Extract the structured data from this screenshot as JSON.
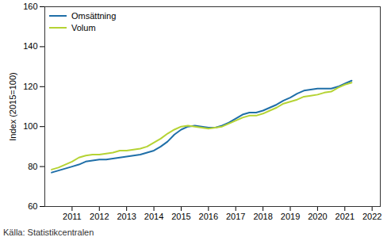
{
  "chart_data": {
    "type": "line",
    "y_label": "Index (2015=100)",
    "caption": "Källa: Statistikcentralen",
    "x": [
      2010.25,
      2010.5,
      2010.75,
      2011,
      2011.25,
      2011.5,
      2011.75,
      2012,
      2012.25,
      2012.5,
      2012.75,
      2013,
      2013.25,
      2013.5,
      2013.75,
      2014,
      2014.25,
      2014.5,
      2014.75,
      2015,
      2015.25,
      2015.5,
      2015.75,
      2016,
      2016.25,
      2016.5,
      2016.75,
      2017,
      2017.25,
      2017.5,
      2017.75,
      2018,
      2018.25,
      2018.5,
      2018.75,
      2019,
      2019.25,
      2019.5,
      2019.75,
      2020,
      2020.25,
      2020.5,
      2020.75,
      2021,
      2021.25
    ],
    "series": [
      {
        "name": "Omsättning",
        "color": "#1f6fa8",
        "values": [
          77,
          78,
          79,
          80,
          81,
          82.5,
          83,
          83.5,
          83.5,
          84,
          84.5,
          85,
          85.5,
          86,
          87,
          88,
          90,
          92.5,
          96,
          98.5,
          100,
          100.5,
          100,
          99.5,
          99.5,
          100.5,
          102,
          104,
          106,
          107,
          107,
          108,
          109.5,
          111,
          113,
          114.5,
          116.5,
          118,
          118.5,
          119,
          119,
          119,
          120,
          121.5,
          123
        ]
      },
      {
        "name": "Volum",
        "color": "#b5d334",
        "values": [
          78.5,
          79.5,
          81,
          82.5,
          84.5,
          85.5,
          86,
          86,
          86.5,
          87,
          88,
          88,
          88.5,
          89,
          90,
          92,
          94,
          96.5,
          98.5,
          100,
          100.5,
          100,
          99.5,
          99,
          99.5,
          100,
          101.5,
          103,
          104.5,
          105.5,
          105.5,
          106.5,
          108,
          109.5,
          111.5,
          112.5,
          113.5,
          115,
          115.5,
          116,
          117,
          117.5,
          119.5,
          121,
          122
        ]
      }
    ],
    "xlim": [
      2010,
      2022.3
    ],
    "xticks": [
      2011,
      2012,
      2013,
      2014,
      2015,
      2016,
      2017,
      2018,
      2019,
      2020,
      2021,
      2022
    ],
    "ylim": [
      60,
      160
    ],
    "yticks": [
      60,
      80,
      100,
      120,
      140,
      160
    ],
    "grid": false,
    "legend": "top-left"
  }
}
